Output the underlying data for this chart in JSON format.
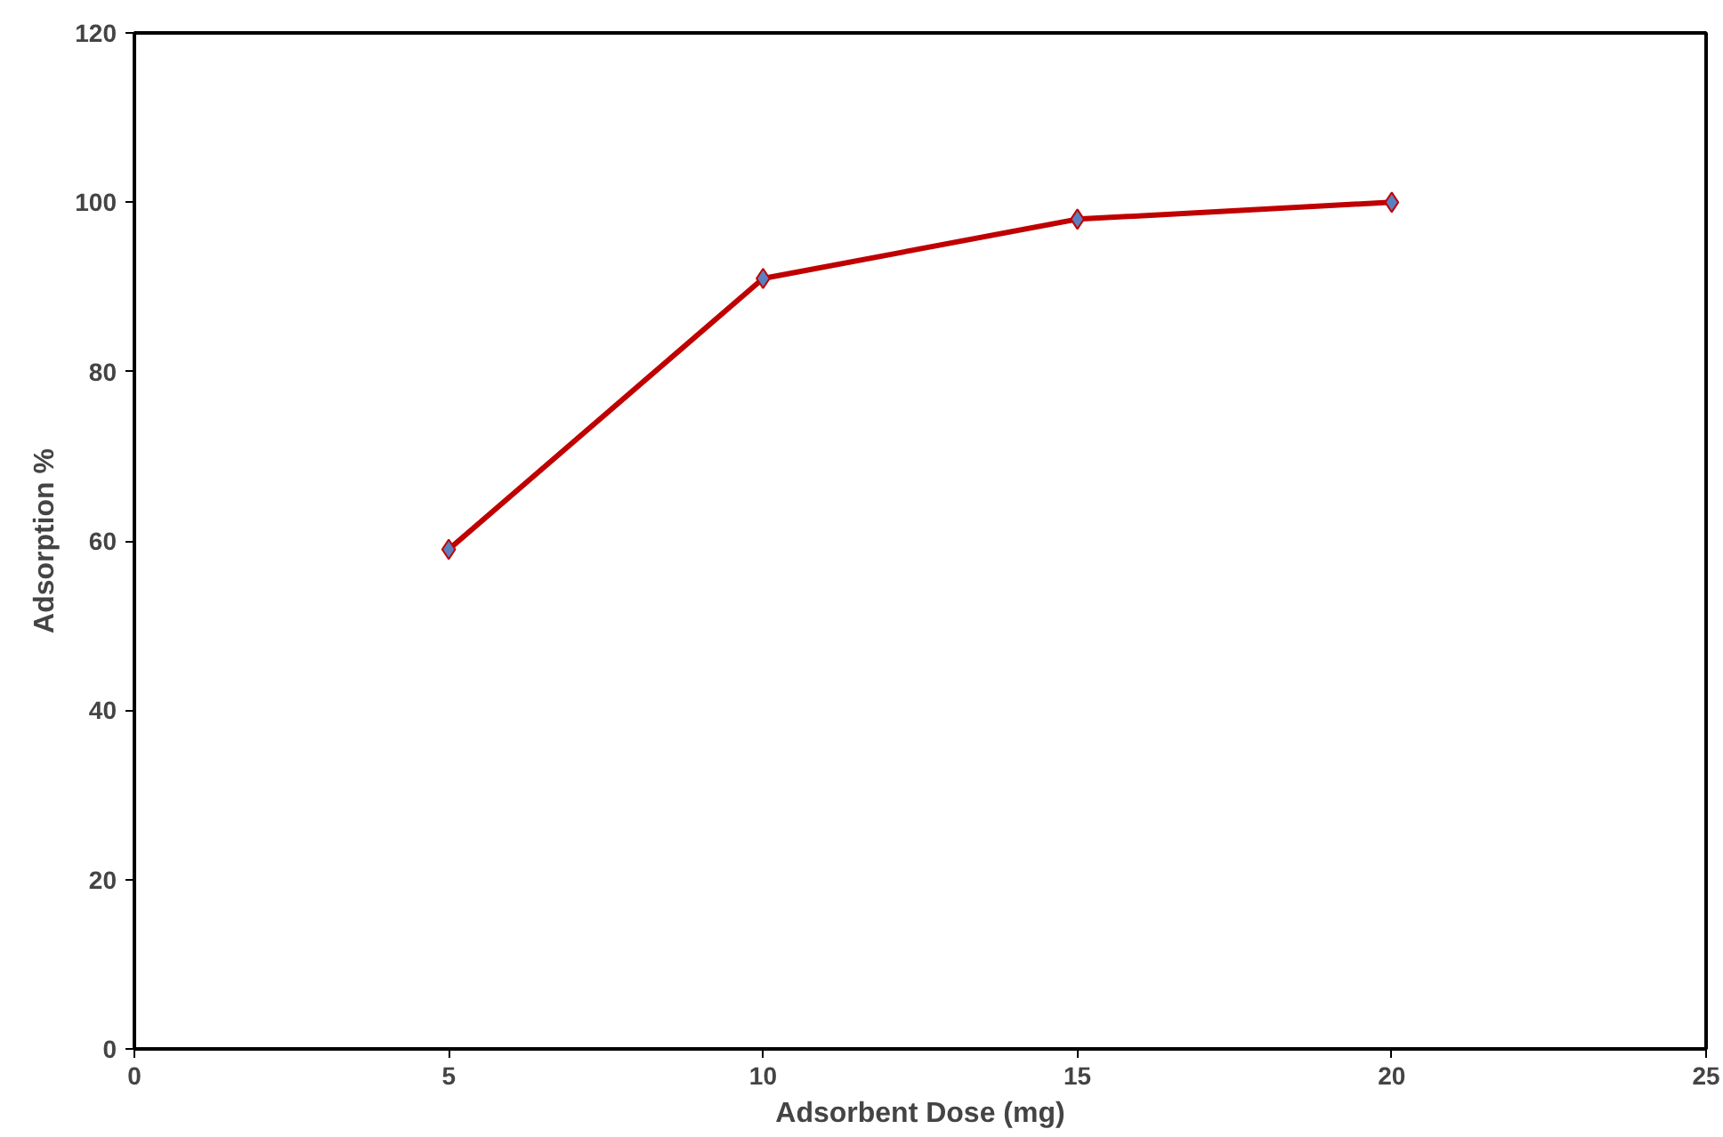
{
  "chart_data": {
    "type": "line",
    "xlabel": "Adsorbent Dose (mg)",
    "ylabel": "Adsorption %",
    "x": [
      5,
      10,
      15,
      20
    ],
    "series": [
      {
        "color": "#c00000",
        "values": [
          59,
          91,
          98,
          100
        ]
      }
    ],
    "xlim": [
      0,
      25
    ],
    "xticks": [
      0,
      5,
      10,
      15,
      20,
      25
    ],
    "ylim": [
      0,
      120
    ],
    "yticks": [
      0,
      20,
      40,
      60,
      80,
      100,
      120
    ],
    "grid": false,
    "marker": "diamond",
    "line_style": "solid"
  }
}
